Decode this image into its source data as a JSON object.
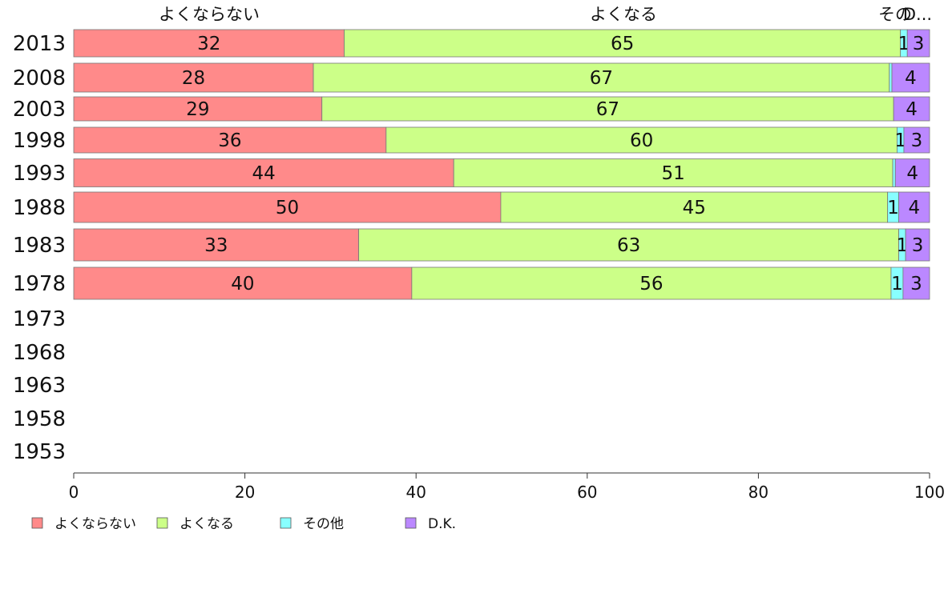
{
  "chart_data": {
    "type": "bar",
    "orientation": "horizontal",
    "stacked": true,
    "categories": [
      "2013",
      "2008",
      "2003",
      "1998",
      "1993",
      "1988",
      "1983",
      "1978",
      "1973",
      "1968",
      "1963",
      "1958",
      "1953"
    ],
    "series": [
      {
        "name": "よくならない",
        "color": "#ff8a8a",
        "values": [
          31.6,
          28.0,
          29.0,
          36.5,
          44.4,
          49.9,
          33.3,
          39.5,
          null,
          null,
          null,
          null,
          null
        ],
        "labels": [
          "32",
          "28",
          "29",
          "36",
          "44",
          "50",
          "33",
          "40",
          "",
          "",
          "",
          "",
          ""
        ]
      },
      {
        "name": "よくなる",
        "color": "#ccff88",
        "values": [
          65.0,
          67.3,
          66.8,
          59.7,
          51.3,
          45.2,
          63.1,
          56.0,
          null,
          null,
          null,
          null,
          null
        ],
        "labels": [
          "65",
          "67",
          "67",
          "60",
          "51",
          "45",
          "63",
          "56",
          "",
          "",
          "",
          "",
          ""
        ]
      },
      {
        "name": "その他",
        "color": "#88ffff",
        "values": [
          0.8,
          0.3,
          0.0,
          0.8,
          0.3,
          1.3,
          0.8,
          1.4,
          null,
          null,
          null,
          null,
          null
        ],
        "labels": [
          "1",
          "",
          "",
          "1",
          "",
          "1",
          "1",
          "1",
          "",
          "",
          "",
          "",
          ""
        ]
      },
      {
        "name": "D.K.",
        "color": "#bb88ff",
        "values": [
          2.6,
          4.4,
          4.2,
          3.0,
          4.0,
          3.6,
          2.8,
          3.1,
          null,
          null,
          null,
          null,
          null
        ],
        "labels": [
          "3",
          "4",
          "4",
          "3",
          "4",
          "4",
          "3",
          "3",
          "",
          "",
          "",
          "",
          ""
        ]
      }
    ],
    "column_headers": [
      "よくならない",
      "よくなる",
      "その",
      "D..."
    ],
    "xlim": [
      0,
      100
    ],
    "xticks": [
      "0",
      "20",
      "40",
      "60",
      "80",
      "100"
    ],
    "legend": [
      "よくならない",
      "よくなる",
      "その他",
      "D.K."
    ],
    "legend_position": "bottom-left",
    "grid": false
  }
}
